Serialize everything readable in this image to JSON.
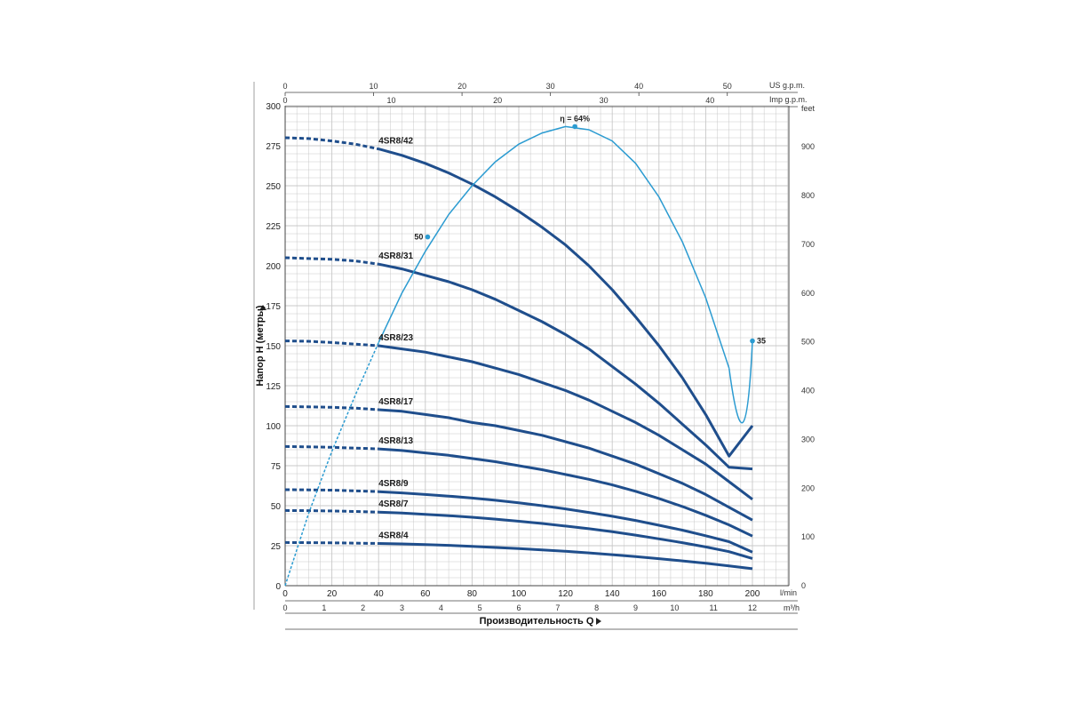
{
  "chart_data": {
    "type": "line",
    "x_label": "Производительность Q",
    "y_label": "Напор H (метры)",
    "x_unit_lmin": "l/min",
    "x_unit_m3h": "m³/h",
    "x_unit_usgpm": "US g.p.m.",
    "x_unit_impgpm": "Imp g.p.m.",
    "y_unit_feet": "feet",
    "xlim": [
      0,
      200
    ],
    "ylim": [
      0,
      300
    ],
    "grid": true,
    "x_ticks_lmin": [
      "0",
      "20",
      "40",
      "60",
      "80",
      "100",
      "120",
      "140",
      "160",
      "180",
      "200"
    ],
    "x_ticks_m3h": [
      "0",
      "1",
      "2",
      "3",
      "4",
      "5",
      "6",
      "7",
      "8",
      "9",
      "10",
      "11",
      "12"
    ],
    "x_ticks_usgpm": [
      "0",
      "10",
      "20",
      "30",
      "40",
      "50"
    ],
    "x_ticks_impgpm": [
      "0",
      "10",
      "20",
      "30",
      "40"
    ],
    "y_ticks_m": [
      "0",
      "25",
      "50",
      "75",
      "100",
      "125",
      "150",
      "175",
      "200",
      "225",
      "250",
      "275",
      "300"
    ],
    "y_ticks_feet": [
      "0",
      "100",
      "200",
      "300",
      "400",
      "500",
      "600",
      "700",
      "800",
      "900"
    ],
    "series": [
      {
        "name": "4SR8/42",
        "dashed_until": 40,
        "x": [
          0,
          10,
          20,
          30,
          40,
          50,
          60,
          70,
          80,
          90,
          100,
          110,
          120,
          130,
          140,
          150,
          160,
          170,
          180,
          190,
          200
        ],
        "y": [
          280,
          279.5,
          278,
          276,
          273,
          269,
          264,
          258,
          251,
          243,
          234,
          224,
          213,
          200,
          185,
          168,
          150,
          130,
          107,
          81,
          100
        ]
      },
      {
        "name": "4SR8/31",
        "dashed_until": 40,
        "x": [
          0,
          10,
          20,
          30,
          40,
          50,
          60,
          70,
          80,
          90,
          100,
          110,
          120,
          130,
          140,
          150,
          160,
          170,
          180,
          190,
          200
        ],
        "y": [
          205,
          204.5,
          204,
          203,
          201,
          198,
          194,
          190,
          185,
          179,
          172,
          165,
          157,
          148,
          137,
          126,
          114,
          101,
          88,
          74,
          73
        ]
      },
      {
        "name": "4SR8/23",
        "dashed_until": 40,
        "x": [
          0,
          10,
          20,
          30,
          40,
          50,
          60,
          70,
          80,
          90,
          100,
          110,
          120,
          130,
          140,
          150,
          160,
          170,
          180,
          190,
          200
        ],
        "y": [
          153,
          152.8,
          152,
          151,
          150,
          148,
          146,
          143,
          140,
          136,
          132,
          127,
          122,
          116,
          109,
          102,
          94,
          85,
          76,
          65,
          54
        ]
      },
      {
        "name": "4SR8/17",
        "dashed_until": 40,
        "x": [
          0,
          10,
          20,
          30,
          40,
          50,
          60,
          70,
          80,
          90,
          100,
          110,
          120,
          130,
          140,
          150,
          160,
          170,
          180,
          190,
          200
        ],
        "y": [
          112,
          111.8,
          111.5,
          111,
          110,
          109,
          107,
          105,
          102,
          100,
          97,
          94,
          90,
          86,
          81,
          76,
          70,
          64,
          57,
          49,
          41
        ]
      },
      {
        "name": "4SR8/13",
        "dashed_until": 40,
        "x": [
          0,
          10,
          20,
          30,
          40,
          50,
          60,
          70,
          80,
          90,
          100,
          110,
          120,
          130,
          140,
          150,
          160,
          170,
          180,
          190,
          200
        ],
        "y": [
          87,
          86.8,
          86.5,
          86,
          85.5,
          84.5,
          83,
          81.5,
          79.5,
          77.5,
          75,
          72.5,
          69.5,
          66.5,
          63,
          59,
          54.5,
          49.5,
          44,
          38,
          31
        ]
      },
      {
        "name": "4SR8/9",
        "dashed_until": 40,
        "x": [
          0,
          10,
          20,
          30,
          40,
          50,
          60,
          70,
          80,
          90,
          100,
          110,
          120,
          130,
          140,
          150,
          160,
          170,
          180,
          190,
          200
        ],
        "y": [
          60,
          59.9,
          59.7,
          59.3,
          58.8,
          58,
          57,
          56,
          54.8,
          53.4,
          51.8,
          50,
          48,
          45.8,
          43.4,
          40.8,
          37.8,
          34.7,
          31.2,
          27.5,
          21
        ]
      },
      {
        "name": "4SR8/7",
        "dashed_until": 40,
        "x": [
          0,
          10,
          20,
          30,
          40,
          50,
          60,
          70,
          80,
          90,
          100,
          110,
          120,
          130,
          140,
          150,
          160,
          170,
          180,
          190,
          200
        ],
        "y": [
          47,
          46.9,
          46.7,
          46.4,
          46,
          45.4,
          44.6,
          43.8,
          42.8,
          41.6,
          40.3,
          38.9,
          37.3,
          35.6,
          33.7,
          31.6,
          29.3,
          26.9,
          24.2,
          21.3,
          17
        ]
      },
      {
        "name": "4SR8/4",
        "dashed_until": 40,
        "x": [
          0,
          10,
          20,
          30,
          40,
          50,
          60,
          70,
          80,
          90,
          100,
          110,
          120,
          130,
          140,
          150,
          160,
          170,
          180,
          190,
          200
        ],
        "y": [
          27,
          26.9,
          26.8,
          26.6,
          26.4,
          26.1,
          25.7,
          25.2,
          24.6,
          23.9,
          23.2,
          22.4,
          21.5,
          20.5,
          19.4,
          18.2,
          16.9,
          15.5,
          14,
          12.4,
          10.6
        ]
      }
    ],
    "efficiency_curve": {
      "scale_note": "efficiency % plotted against head axis",
      "label_peak": "η = 64%",
      "label_mid": "50",
      "label_end": "35",
      "x": [
        0,
        10,
        20,
        30,
        40,
        50,
        60,
        70,
        80,
        90,
        100,
        110,
        120,
        130,
        140,
        150,
        160,
        170,
        180,
        190,
        200
      ],
      "y": [
        0,
        45,
        84,
        119,
        152,
        183,
        209,
        232,
        250,
        265,
        276,
        283,
        287,
        285,
        278,
        264,
        243,
        215,
        180,
        136,
        153
      ],
      "dashed_until": 40,
      "points": [
        {
          "x": 61,
          "y": 218,
          "label": "50"
        },
        {
          "x": 124,
          "y": 287,
          "label": "η = 64%"
        },
        {
          "x": 200,
          "y": 153,
          "label": "35"
        }
      ]
    },
    "colors": {
      "pump_curve": "#1f4e8c",
      "efficiency": "#2b9bd1",
      "grid": "#c8c8c8"
    }
  }
}
